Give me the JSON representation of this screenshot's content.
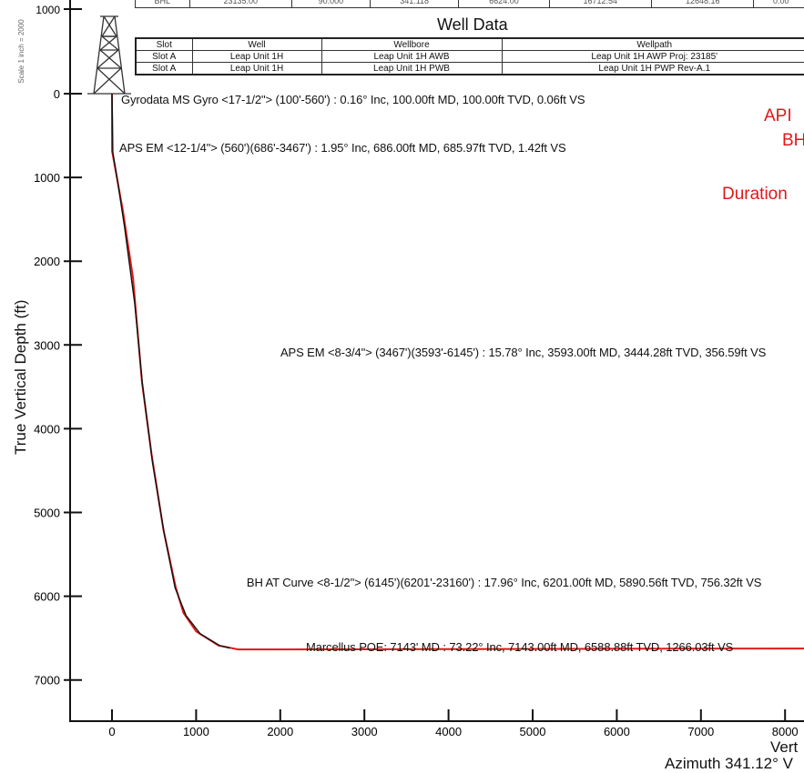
{
  "scale_note": "Scale 1 inch = 2000",
  "top_row_cells": [
    "BHL",
    "23135.00",
    "90.000",
    "341.118",
    "6624.00",
    "16712.54",
    "12648.16",
    "0.00"
  ],
  "well_data": {
    "title": "Well Data",
    "headers": [
      "Slot",
      "Well",
      "Wellbore",
      "Wellpath"
    ],
    "rows": [
      [
        "Slot A",
        "Leap Unit 1H",
        "Leap Unit 1H AWB",
        "Leap Unit 1H AWP Proj: 23185'"
      ],
      [
        "Slot A",
        "Leap Unit 1H",
        "Leap Unit 1H PWB",
        "Leap Unit 1H PWP Rev-A.1"
      ]
    ]
  },
  "right_labels": [
    "API",
    "BH",
    "Duration"
  ],
  "annotations": [
    {
      "text": "Gyrodata MS Gyro <17-1/2\"> (100'-560') : 0.16° Inc, 100.00ft MD, 100.00ft TVD, 0.06ft VS",
      "x": 0,
      "y": 100
    },
    {
      "text": "APS EM <12-1/4\"> (560')(686'-3467') : 1.95° Inc, 686.00ft MD, 685.97ft TVD, 1.42ft VS",
      "x": 0,
      "y": 686
    },
    {
      "text": "APS EM <8-3/4\"> (3467')(3593'-6145') : 15.78° Inc, 3593.00ft MD, 3444.28ft TVD, 356.59ft VS",
      "x": 356.59,
      "y": 3444.28
    },
    {
      "text": "BH AT Curve <8-1/2\"> (6145')(6201'-23160') : 17.96° Inc, 6201.00ft MD, 5890.56ft TVD, 756.32ft VS",
      "x": 756.32,
      "y": 5890.56
    },
    {
      "text": "Marcellus POE: 7143' MD : 73.22° Inc, 7143.00ft MD, 6588.88ft TVD, 1266.03ft VS",
      "x": 1266.03,
      "y": 6588.88
    }
  ],
  "chart_data": {
    "type": "line",
    "ylabel": "True Vertical Depth (ft)",
    "xlabel": "Vert",
    "azimuth_label": "Azimuth 341.12° V",
    "x_ticks": [
      0,
      1000,
      2000,
      3000,
      4000,
      5000,
      6000,
      7000,
      8000
    ],
    "y_ticks": [
      0,
      1000,
      2000,
      3000,
      4000,
      5000,
      6000,
      7000
    ],
    "top_tick": "1000",
    "xlim": [
      -500,
      8300
    ],
    "ylim": [
      -1000,
      7500
    ],
    "series": [
      {
        "color": "#e01818",
        "points": [
          [
            0,
            0
          ],
          [
            0,
            100
          ],
          [
            0,
            400
          ],
          [
            1.4,
            686
          ],
          [
            40,
            900
          ],
          [
            130,
            1400
          ],
          [
            250,
            2200
          ],
          [
            356.6,
            3444.3
          ],
          [
            470,
            4300
          ],
          [
            610,
            5200
          ],
          [
            756.3,
            5890.6
          ],
          [
            850,
            6200
          ],
          [
            1000,
            6420
          ],
          [
            1266,
            6588.9
          ],
          [
            1500,
            6635
          ],
          [
            2000,
            6635
          ],
          [
            4000,
            6632
          ],
          [
            6000,
            6628
          ],
          [
            8300,
            6624
          ]
        ]
      },
      {
        "color": "#111111",
        "points": [
          [
            0,
            0
          ],
          [
            5,
            300
          ],
          [
            10,
            700
          ],
          [
            60,
            1000
          ],
          [
            150,
            1600
          ],
          [
            270,
            2500
          ],
          [
            360,
            3450
          ],
          [
            480,
            4400
          ],
          [
            620,
            5250
          ],
          [
            750,
            5900
          ],
          [
            880,
            6230
          ],
          [
            1050,
            6450
          ],
          [
            1280,
            6590
          ],
          [
            1400,
            6620
          ]
        ]
      }
    ]
  }
}
